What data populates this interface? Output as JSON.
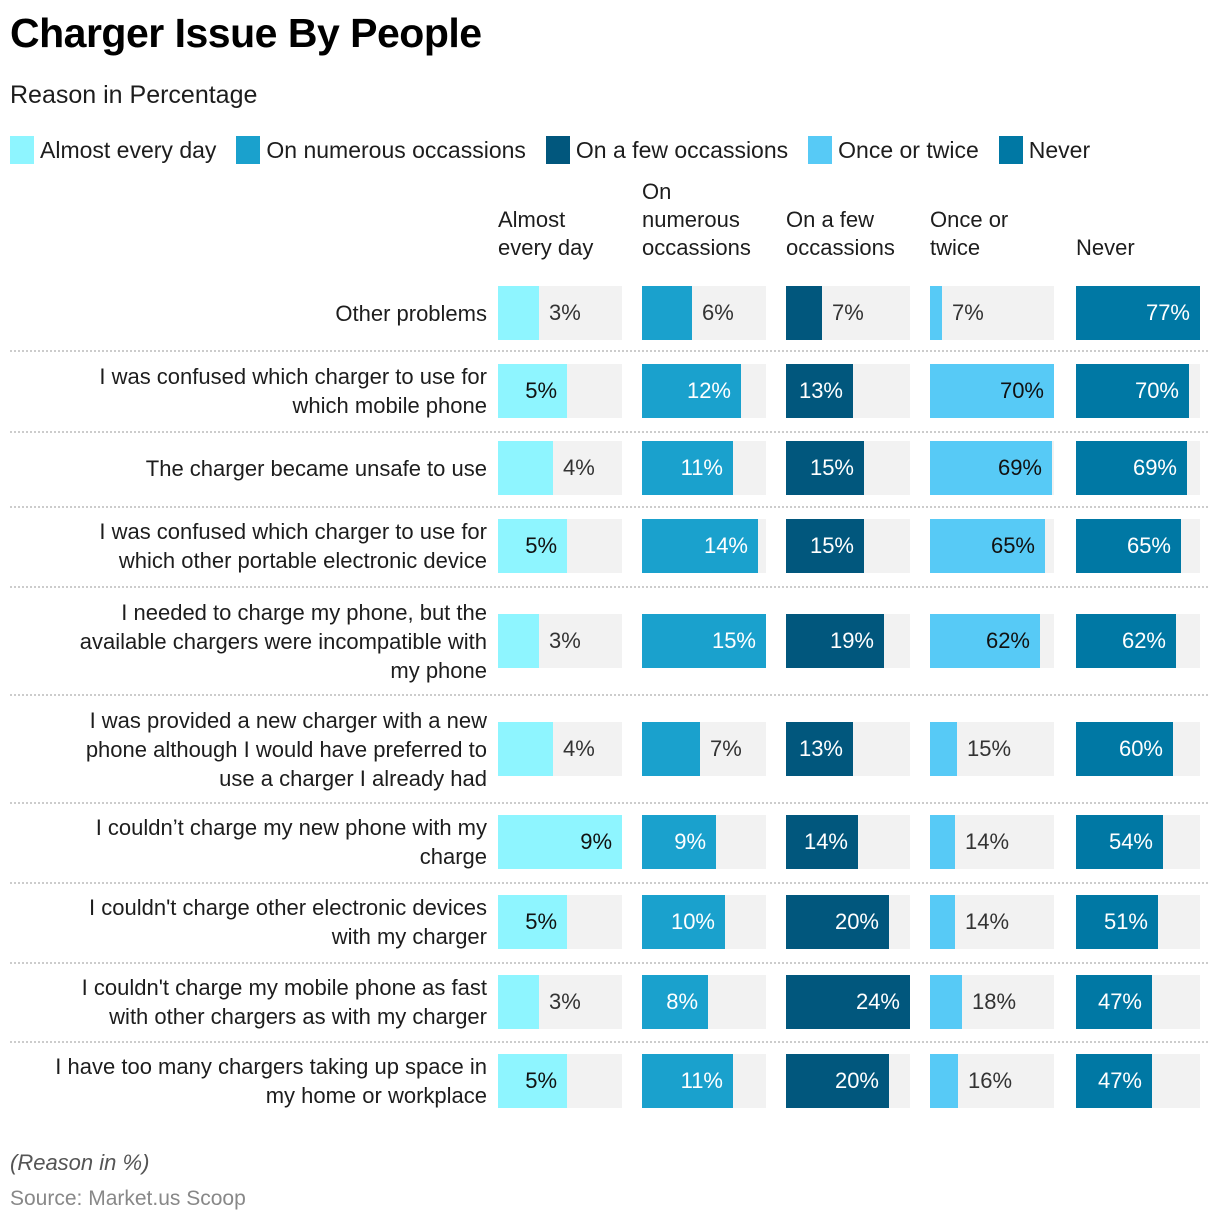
{
  "title": "Charger Issue By People",
  "subtitle": "Reason in Percentage",
  "note": "(Reason in %)",
  "source": "Source: Market.us Scoop",
  "colors": {
    "almost_every_day": "#8ef5ff",
    "on_numerous": "#1aa1cd",
    "on_a_few": "#01577d",
    "once_or_twice": "#57caf6",
    "never": "#0078a4",
    "track": "#f2f2f2"
  },
  "chart_data": {
    "type": "table",
    "title": "Charger Issue By People",
    "subtitle": "Reason in Percentage",
    "unit": "%",
    "legend": [
      "Almost every day",
      "On numerous occassions",
      "On a few occassions",
      "Once or twice",
      "Never"
    ],
    "legend_position": "top-left",
    "columns": [
      {
        "key": "almost_every_day",
        "header": [
          "Almost",
          "every day"
        ],
        "max": 9
      },
      {
        "key": "on_numerous",
        "header": [
          "On",
          "numerous",
          "occassions"
        ],
        "max": 15
      },
      {
        "key": "on_a_few",
        "header": [
          "On a few",
          "occassions"
        ],
        "max": 24
      },
      {
        "key": "once_or_twice",
        "header": [
          "Once or",
          "twice"
        ],
        "max": 70
      },
      {
        "key": "never",
        "header": [
          "Never"
        ],
        "max": 77
      }
    ],
    "categories": [
      "Other problems",
      "I was confused which charger to use for which mobile phone",
      "The charger became unsafe to use",
      "I was confused which charger to use for which other portable electronic device",
      "I needed to charge my phone, but the available chargers were incompatible with my phone",
      "I was provided a new charger with a new phone although I would have preferred to use a charger I already had",
      "I couldn’t charge my new phone with my charge",
      "I couldn't charge other electronic devices with my charger",
      "I couldn't charge my mobile phone as fast with other chargers as with my charger",
      "I have too many chargers taking up space in my home or workplace"
    ],
    "series": [
      {
        "name": "Almost every day",
        "values": [
          3,
          5,
          4,
          5,
          3,
          4,
          9,
          5,
          3,
          5
        ]
      },
      {
        "name": "On numerous occassions",
        "values": [
          6,
          12,
          11,
          14,
          15,
          7,
          9,
          10,
          8,
          11
        ]
      },
      {
        "name": "On a few occassions",
        "values": [
          7,
          13,
          15,
          15,
          19,
          13,
          14,
          20,
          24,
          20
        ]
      },
      {
        "name": "Once or twice",
        "values": [
          7,
          70,
          69,
          65,
          62,
          15,
          14,
          14,
          18,
          16
        ]
      },
      {
        "name": "Never",
        "values": [
          77,
          70,
          69,
          65,
          62,
          60,
          54,
          51,
          47,
          47
        ]
      }
    ]
  },
  "rows": [
    {
      "label_lines": [
        "Other problems"
      ]
    },
    {
      "label_lines": [
        "I was confused which charger to use for",
        "which mobile phone"
      ]
    },
    {
      "label_lines": [
        "The charger became unsafe to use"
      ]
    },
    {
      "label_lines": [
        "I was confused which charger to use for",
        "which other portable electronic device"
      ]
    },
    {
      "label_lines": [
        "I needed to charge my phone, but the",
        "available chargers were incompatible with",
        "my phone"
      ]
    },
    {
      "label_lines": [
        "I was provided a new charger with a new",
        "phone although I would have preferred to",
        "use a charger I already had"
      ]
    },
    {
      "label_lines": [
        "I couldn’t charge my new phone with my",
        "charge"
      ]
    },
    {
      "label_lines": [
        "I couldn't charge other electronic devices",
        "with my charger"
      ]
    },
    {
      "label_lines": [
        "I couldn't charge my mobile phone as fast",
        "with other chargers as with my charger"
      ]
    },
    {
      "label_lines": [
        "I have too many chargers taking up space in",
        "my home or workplace"
      ]
    }
  ]
}
